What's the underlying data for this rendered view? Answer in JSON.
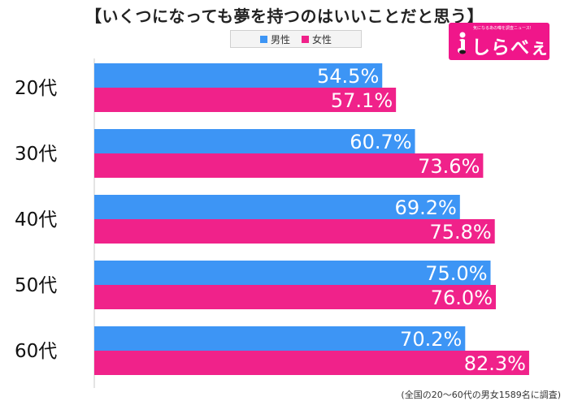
{
  "title": "【いくつになっても夢を持つのはいいことだと思う】",
  "legend": [
    {
      "name": "男性",
      "color": "#3d95f5"
    },
    {
      "name": "女性",
      "color": "#f0228a"
    }
  ],
  "logo": {
    "text": "しらべぇ",
    "tagline": "気になるあの噂を調査ニュース!"
  },
  "footnote": "(全国の20〜60代の男女1589名に調査)",
  "chart_data": {
    "type": "bar",
    "orientation": "horizontal",
    "categories": [
      "20代",
      "30代",
      "40代",
      "50代",
      "60代"
    ],
    "series": [
      {
        "name": "男性",
        "color": "#3d95f5",
        "values": [
          54.5,
          60.7,
          69.2,
          75.0,
          70.2
        ],
        "labels": [
          "54.5%",
          "60.7%",
          "69.2%",
          "75.0%",
          "70.2%"
        ]
      },
      {
        "name": "女性",
        "color": "#f0228a",
        "values": [
          57.1,
          73.6,
          75.8,
          76.0,
          82.3
        ],
        "labels": [
          "57.1%",
          "73.6%",
          "75.8%",
          "76.0%",
          "82.3%"
        ]
      }
    ],
    "xlim": [
      0,
      100
    ],
    "grid": false,
    "legend_position": "top-center"
  }
}
